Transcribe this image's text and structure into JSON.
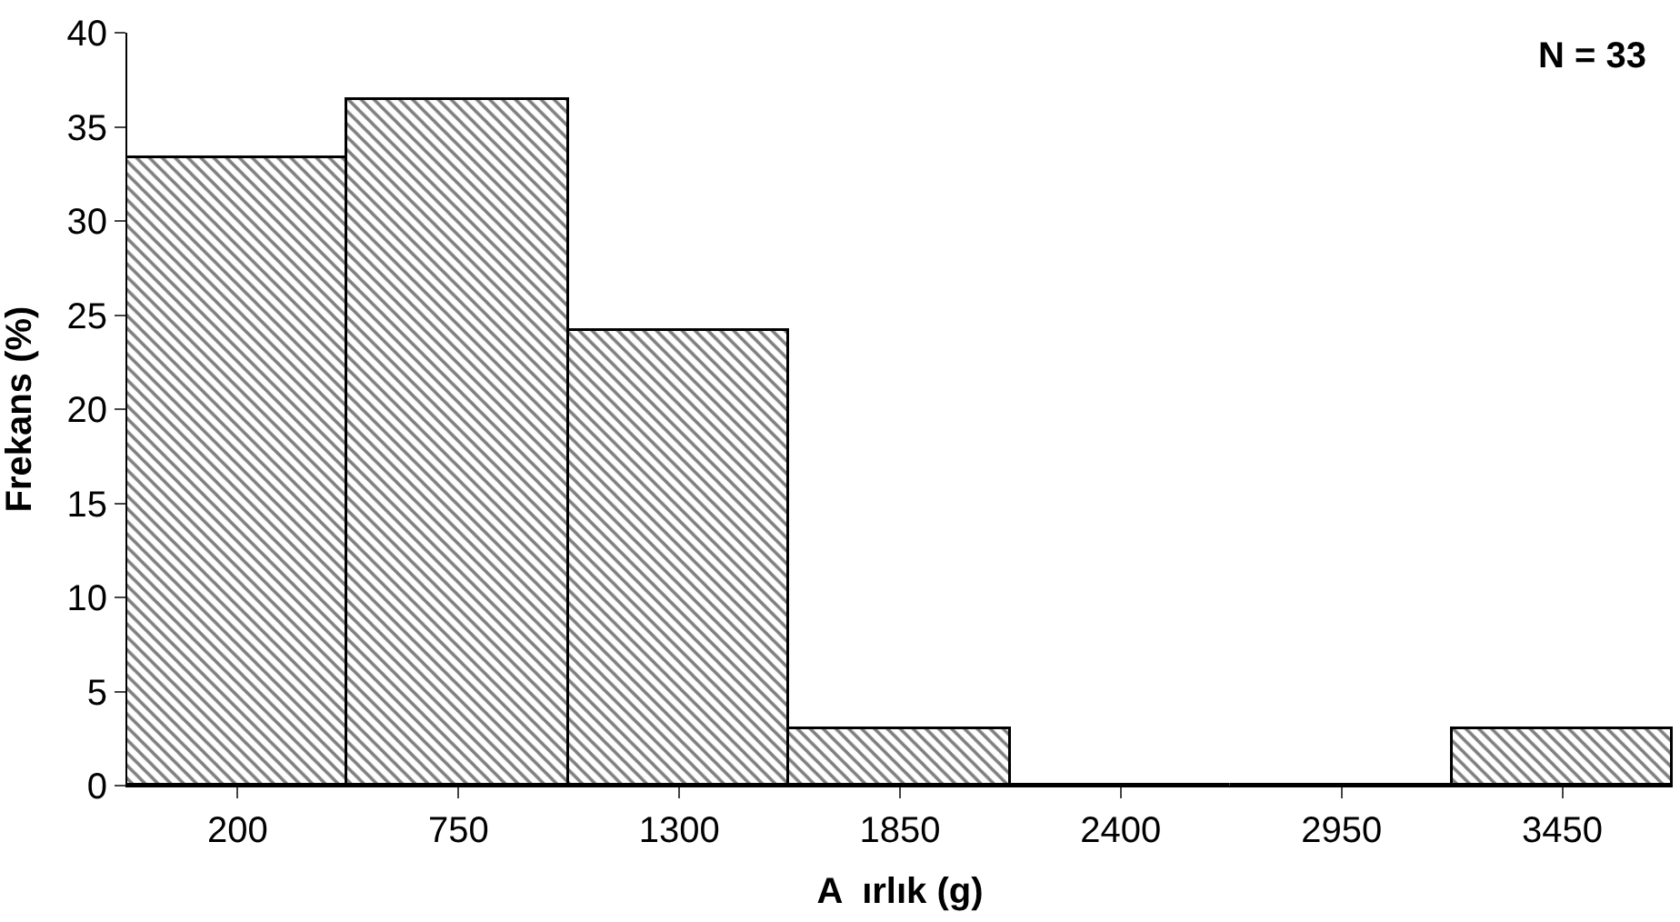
{
  "chart_data": {
    "type": "bar",
    "xlabel": "A  ırlık (g)",
    "ylabel": "Frekans (%)",
    "categories": [
      "200",
      "750",
      "1300",
      "1850",
      "2400",
      "2950",
      "3450"
    ],
    "values": [
      33.3,
      36.4,
      24.2,
      3.0,
      0,
      0,
      3.0
    ],
    "color": "#000000",
    "ylim": [
      0,
      40
    ],
    "yticks": [
      0,
      5,
      10,
      15,
      20,
      25,
      30,
      35,
      40
    ],
    "annotations": [
      "N = 33"
    ]
  }
}
